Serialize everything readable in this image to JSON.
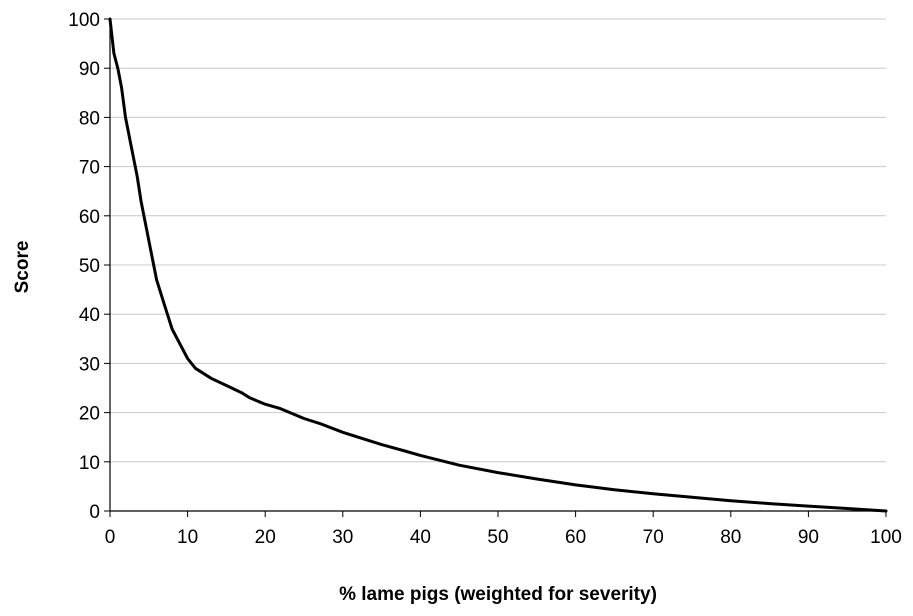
{
  "chart_data": {
    "type": "line",
    "title": "",
    "xlabel": "% lame pigs (weighted for severity)",
    "ylabel": "Score",
    "xlim": [
      0,
      100
    ],
    "ylim": [
      0,
      100
    ],
    "xticks": [
      0,
      10,
      20,
      30,
      40,
      50,
      60,
      70,
      80,
      90,
      100
    ],
    "yticks": [
      0,
      10,
      20,
      30,
      40,
      50,
      60,
      70,
      80,
      90,
      100
    ],
    "grid": "horizontal",
    "legend": "none",
    "series": [
      {
        "color": "#000000",
        "points": [
          [
            0,
            100
          ],
          [
            0.5,
            93
          ],
          [
            1,
            90
          ],
          [
            1.5,
            86
          ],
          [
            2,
            80
          ],
          [
            3,
            72
          ],
          [
            3.5,
            68
          ],
          [
            4,
            63
          ],
          [
            5,
            55
          ],
          [
            6,
            47
          ],
          [
            7,
            42
          ],
          [
            8,
            37
          ],
          [
            9,
            34
          ],
          [
            10,
            31
          ],
          [
            11,
            29
          ],
          [
            12,
            28
          ],
          [
            13,
            27
          ],
          [
            15,
            25.5
          ],
          [
            17,
            24
          ],
          [
            18,
            23
          ],
          [
            20,
            21.7
          ],
          [
            22,
            20.8
          ],
          [
            25,
            18.8
          ],
          [
            27,
            17.8
          ],
          [
            30,
            16
          ],
          [
            33,
            14.5
          ],
          [
            35,
            13.5
          ],
          [
            38,
            12.2
          ],
          [
            40,
            11.3
          ],
          [
            45,
            9.3
          ],
          [
            50,
            7.8
          ],
          [
            55,
            6.5
          ],
          [
            60,
            5.3
          ],
          [
            65,
            4.3
          ],
          [
            70,
            3.5
          ],
          [
            75,
            2.8
          ],
          [
            80,
            2.1
          ],
          [
            85,
            1.5
          ],
          [
            90,
            1.0
          ],
          [
            95,
            0.5
          ],
          [
            100,
            0
          ]
        ]
      }
    ]
  }
}
